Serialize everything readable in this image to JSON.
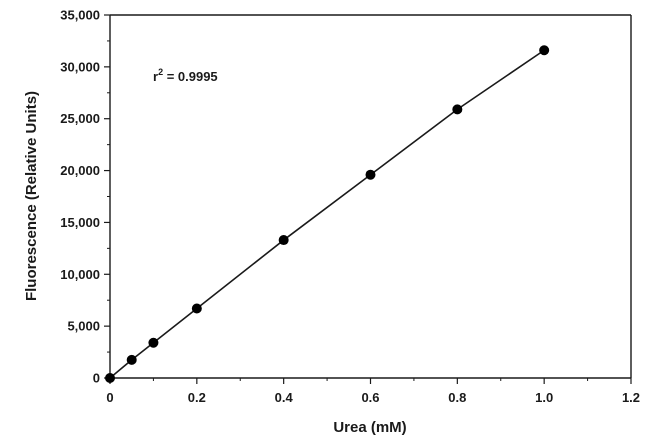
{
  "chart_data": {
    "type": "scatter",
    "title": "",
    "xlabel": "Urea (mM)",
    "ylabel": "Fluorescence (Relative Units)",
    "xlim": [
      0,
      1.2
    ],
    "ylim": [
      0,
      35000
    ],
    "x_ticks": [
      0,
      0.2,
      0.4,
      0.6,
      0.8,
      1.0,
      1.2
    ],
    "x_tick_labels": [
      "0",
      "0.2",
      "0.4",
      "0.6",
      "0.8",
      "1.0",
      "1.2"
    ],
    "y_ticks": [
      0,
      5000,
      10000,
      15000,
      20000,
      25000,
      30000,
      35000
    ],
    "y_tick_labels": [
      "0",
      "5,000",
      "10,000",
      "15,000",
      "20,000",
      "25,000",
      "30,000",
      "35,000"
    ],
    "grid": false,
    "series": [
      {
        "x": [
          0,
          0.05,
          0.1,
          0.2,
          0.4,
          0.6,
          0.8,
          1.0
        ],
        "y": [
          0,
          1750,
          3400,
          6700,
          13300,
          19600,
          25900,
          31600
        ],
        "fit_line": true
      }
    ],
    "annotation": {
      "base": "r",
      "superscript": "2",
      "rest": " = 0.9995"
    }
  },
  "colors": {
    "marker": "#000000",
    "line": "#1a1a1a",
    "axis": "#1a1a1a"
  }
}
